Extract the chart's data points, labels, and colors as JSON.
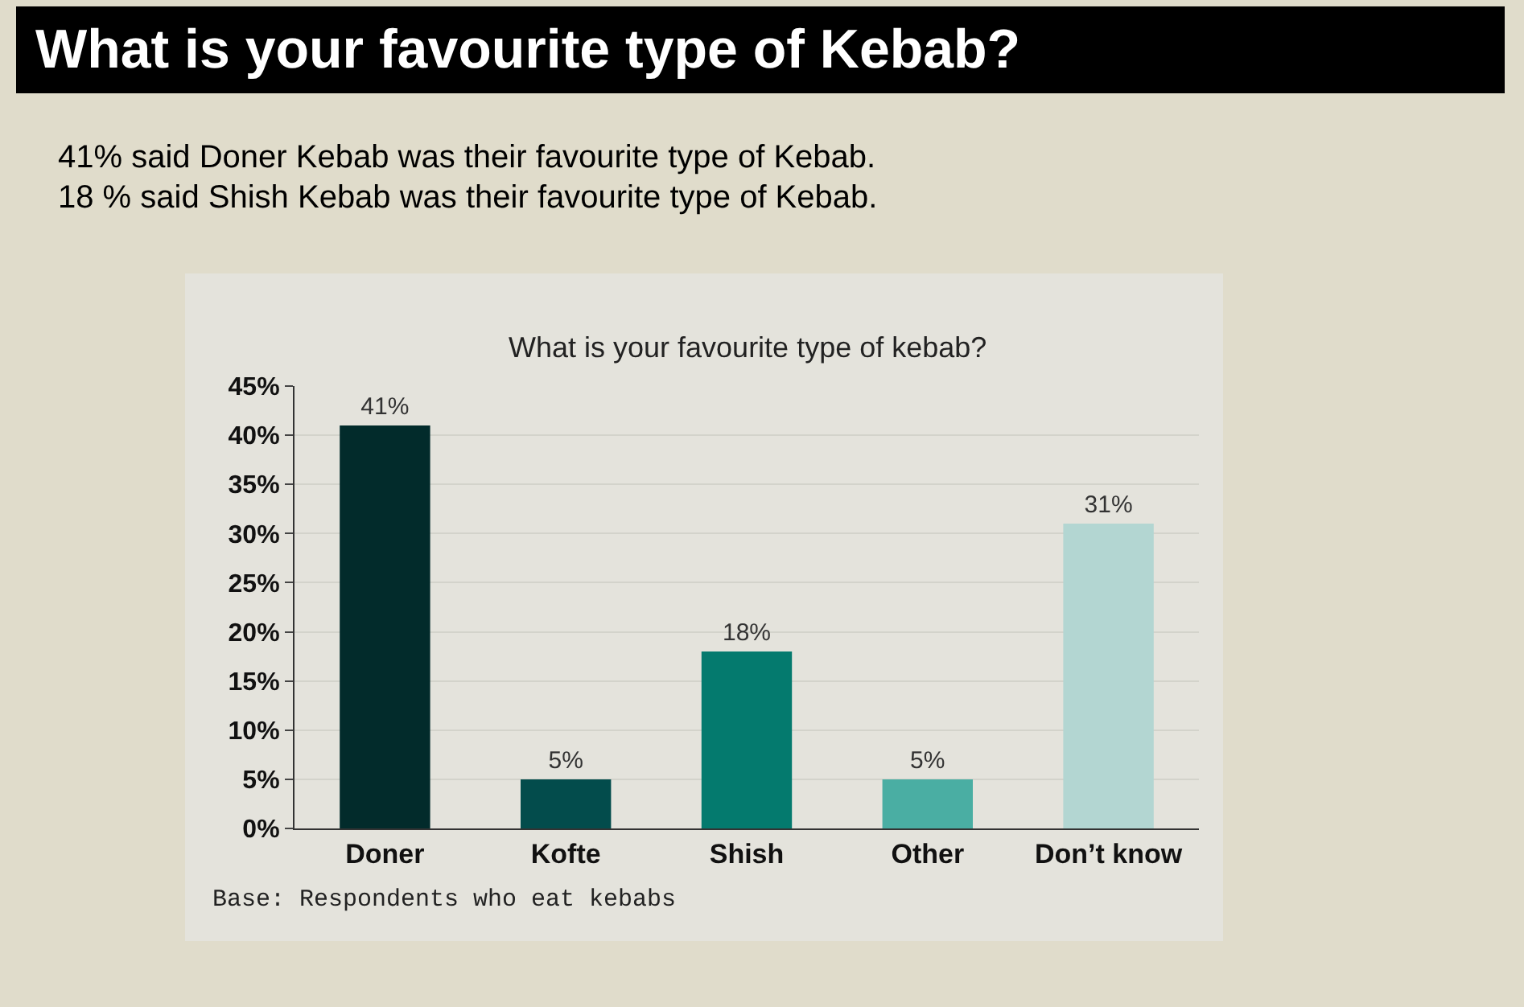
{
  "chart_data": {
    "type": "bar",
    "title": "What is your favourite type of Kebab?",
    "subtitle": "41% said Doner Kebab was their favourite type of Kebab.\n18 % said Shish Kebab was their favourite type of Kebab.",
    "annotations": [
      "What is your favourite type of kebab?",
      "Base: Respondents who eat kebabs"
    ],
    "categories": [
      "Doner",
      "Kofte",
      "Shish",
      "Other",
      "Don’t know"
    ],
    "values": [
      41,
      5,
      18,
      5,
      31
    ],
    "colors": [
      "#022b2b",
      "#034c4c",
      "#047a6e",
      "#4aaea3",
      "#b3d6d2"
    ],
    "value_labels": [
      "41%",
      "5%",
      "18%",
      "5%",
      "31%"
    ],
    "ylim": [
      0,
      45
    ],
    "yticks": [
      {
        "value": 0,
        "label": "0%"
      },
      {
        "value": 5,
        "label": "5%"
      },
      {
        "value": 10,
        "label": "10%"
      },
      {
        "value": 15,
        "label": "15%"
      },
      {
        "value": 20,
        "label": "20%"
      },
      {
        "value": 25,
        "label": "25%"
      },
      {
        "value": 30,
        "label": "30%"
      },
      {
        "value": 35,
        "label": "35%"
      },
      {
        "value": 40,
        "label": "40%"
      },
      {
        "value": 45,
        "label": "45%"
      }
    ],
    "grid": "y",
    "legend": false
  }
}
